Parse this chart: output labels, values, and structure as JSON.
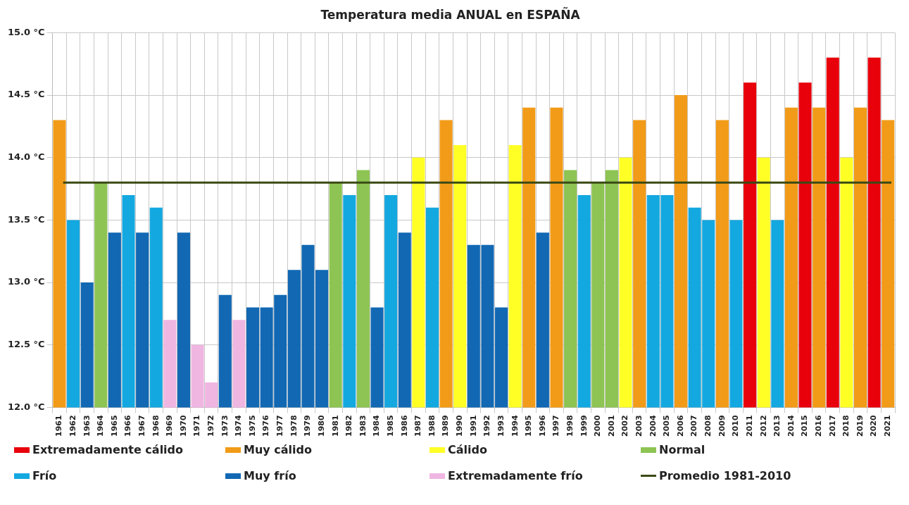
{
  "chart_data": {
    "type": "bar",
    "title": "Temperatura media ANUAL en ESPAÑA",
    "categories": [
      "1961",
      "1962",
      "1963",
      "1964",
      "1965",
      "1966",
      "1967",
      "1968",
      "1969",
      "1970",
      "1971",
      "1972",
      "1973",
      "1974",
      "1975",
      "1976",
      "1977",
      "1978",
      "1979",
      "1980",
      "1981",
      "1982",
      "1983",
      "1984",
      "1985",
      "1986",
      "1987",
      "1988",
      "1989",
      "1990",
      "1991",
      "1992",
      "1993",
      "1994",
      "1995",
      "1996",
      "1997",
      "1998",
      "1999",
      "2000",
      "2001",
      "2002",
      "2003",
      "2004",
      "2005",
      "2006",
      "2007",
      "2008",
      "2009",
      "2010",
      "2011",
      "2012",
      "2013",
      "2014",
      "2015",
      "2016",
      "2017",
      "2018",
      "2019",
      "2020",
      "2021"
    ],
    "series": [
      {
        "name": "Extremadamente cálido",
        "color": "#e8000b",
        "values": [
          null,
          null,
          null,
          null,
          null,
          null,
          null,
          null,
          null,
          null,
          null,
          null,
          null,
          null,
          null,
          null,
          null,
          null,
          null,
          null,
          null,
          null,
          null,
          null,
          null,
          null,
          null,
          null,
          null,
          null,
          null,
          null,
          null,
          null,
          null,
          null,
          null,
          null,
          null,
          null,
          null,
          null,
          null,
          null,
          null,
          null,
          null,
          null,
          null,
          null,
          14.6,
          null,
          null,
          null,
          14.6,
          null,
          14.8,
          null,
          null,
          14.8,
          null
        ]
      },
      {
        "name": "Muy cálido",
        "color": "#f29b18",
        "values": [
          14.3,
          null,
          null,
          null,
          null,
          null,
          null,
          null,
          null,
          null,
          null,
          null,
          null,
          null,
          null,
          null,
          null,
          null,
          null,
          null,
          null,
          null,
          null,
          null,
          null,
          null,
          null,
          null,
          14.3,
          null,
          null,
          null,
          null,
          null,
          14.4,
          null,
          14.4,
          null,
          null,
          null,
          null,
          null,
          14.3,
          null,
          null,
          14.5,
          null,
          null,
          14.3,
          null,
          null,
          null,
          null,
          14.4,
          null,
          14.4,
          null,
          null,
          14.4,
          null,
          14.3
        ]
      },
      {
        "name": "Cálido",
        "color": "#ffff26",
        "values": [
          null,
          null,
          null,
          null,
          null,
          null,
          null,
          null,
          null,
          null,
          null,
          null,
          null,
          null,
          null,
          null,
          null,
          null,
          null,
          null,
          null,
          null,
          null,
          null,
          null,
          null,
          14.0,
          null,
          null,
          14.1,
          null,
          null,
          null,
          14.1,
          null,
          null,
          null,
          null,
          null,
          null,
          null,
          14.0,
          null,
          null,
          null,
          null,
          null,
          null,
          null,
          null,
          null,
          14.0,
          null,
          null,
          null,
          null,
          null,
          14.0,
          null,
          null,
          null
        ]
      },
      {
        "name": "Normal",
        "color": "#8dc453",
        "values": [
          null,
          null,
          null,
          13.8,
          null,
          null,
          null,
          null,
          null,
          null,
          null,
          null,
          null,
          null,
          null,
          null,
          null,
          null,
          null,
          null,
          13.8,
          null,
          13.9,
          null,
          null,
          null,
          null,
          null,
          null,
          null,
          null,
          null,
          null,
          null,
          null,
          null,
          null,
          13.9,
          null,
          13.8,
          13.9,
          null,
          null,
          null,
          null,
          null,
          null,
          null,
          null,
          null,
          null,
          null,
          null,
          null,
          null,
          null,
          null,
          null,
          null,
          null,
          null
        ]
      },
      {
        "name": "Frío",
        "color": "#14a8e0",
        "values": [
          null,
          13.5,
          null,
          null,
          null,
          13.7,
          null,
          13.6,
          null,
          null,
          null,
          null,
          null,
          null,
          null,
          null,
          null,
          null,
          null,
          null,
          null,
          13.7,
          null,
          null,
          13.7,
          null,
          null,
          13.6,
          null,
          null,
          null,
          null,
          null,
          null,
          null,
          null,
          null,
          null,
          13.7,
          null,
          null,
          null,
          null,
          13.7,
          13.7,
          null,
          13.6,
          13.5,
          null,
          13.5,
          null,
          null,
          13.5,
          null,
          null,
          null,
          null,
          null,
          null,
          null,
          null
        ]
      },
      {
        "name": "Muy frío",
        "color": "#1268b3",
        "values": [
          null,
          null,
          13.0,
          null,
          13.4,
          null,
          13.4,
          null,
          null,
          13.4,
          null,
          null,
          12.9,
          null,
          12.8,
          12.8,
          12.9,
          13.1,
          13.3,
          13.1,
          null,
          null,
          null,
          12.8,
          null,
          13.4,
          null,
          null,
          null,
          null,
          13.3,
          13.3,
          12.8,
          null,
          null,
          13.4,
          null,
          null,
          null,
          null,
          null,
          null,
          null,
          null,
          null,
          null,
          null,
          null,
          null,
          null,
          null,
          null,
          null,
          null,
          null,
          null,
          null,
          null,
          null,
          null,
          null
        ]
      },
      {
        "name": "Extremadamente frío",
        "color": "#f0b6e2",
        "values": [
          null,
          null,
          null,
          null,
          null,
          null,
          null,
          null,
          12.7,
          null,
          12.5,
          12.2,
          null,
          12.7,
          null,
          null,
          null,
          null,
          null,
          null,
          null,
          null,
          null,
          null,
          null,
          null,
          null,
          null,
          null,
          null,
          null,
          null,
          null,
          null,
          null,
          null,
          null,
          null,
          null,
          null,
          null,
          null,
          null,
          null,
          null,
          null,
          null,
          null,
          null,
          null,
          null,
          null,
          null,
          null,
          null,
          null,
          null,
          null,
          null,
          null,
          null
        ]
      }
    ],
    "ylim": [
      12.0,
      15.0
    ],
    "yticks": [
      {
        "value": 12.0,
        "label": "12.0 °C"
      },
      {
        "value": 12.5,
        "label": "12.5 °C"
      },
      {
        "value": 13.0,
        "label": "13.0 °C"
      },
      {
        "value": 13.5,
        "label": "13.5 °C"
      },
      {
        "value": 14.0,
        "label": "14.0 °C"
      },
      {
        "value": 14.5,
        "label": "14.5 °C"
      },
      {
        "value": 15.0,
        "label": "15.0 °C"
      }
    ],
    "ref_lines": [
      {
        "axis": "y",
        "value": 13.8,
        "label": "Promedio 1981-2010",
        "color": "#3b4a14"
      }
    ],
    "grid": true,
    "legend": "bottom"
  }
}
